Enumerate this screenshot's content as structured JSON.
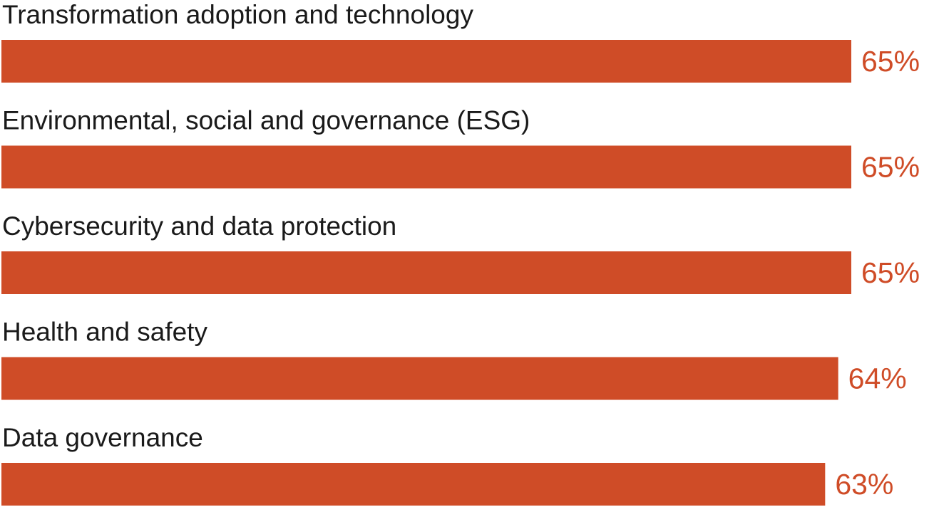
{
  "chart_data": {
    "type": "bar",
    "orientation": "horizontal",
    "categories": [
      "Transformation adoption and technology",
      "Environmental, social and governance (ESG)",
      "Cybersecurity and data protection",
      "Health and safety",
      "Data governance"
    ],
    "values": [
      65,
      65,
      65,
      64,
      63
    ],
    "value_labels": [
      "65%",
      "65%",
      "65%",
      "64%",
      "63%"
    ],
    "unit": "%",
    "title": "",
    "xlabel": "",
    "ylabel": "",
    "xlim": [
      0,
      70
    ],
    "grid": false,
    "legend": "none",
    "bar_color": "#cf4c27",
    "value_label_color": "#cf4c27",
    "label_color": "#1a1a1a"
  }
}
